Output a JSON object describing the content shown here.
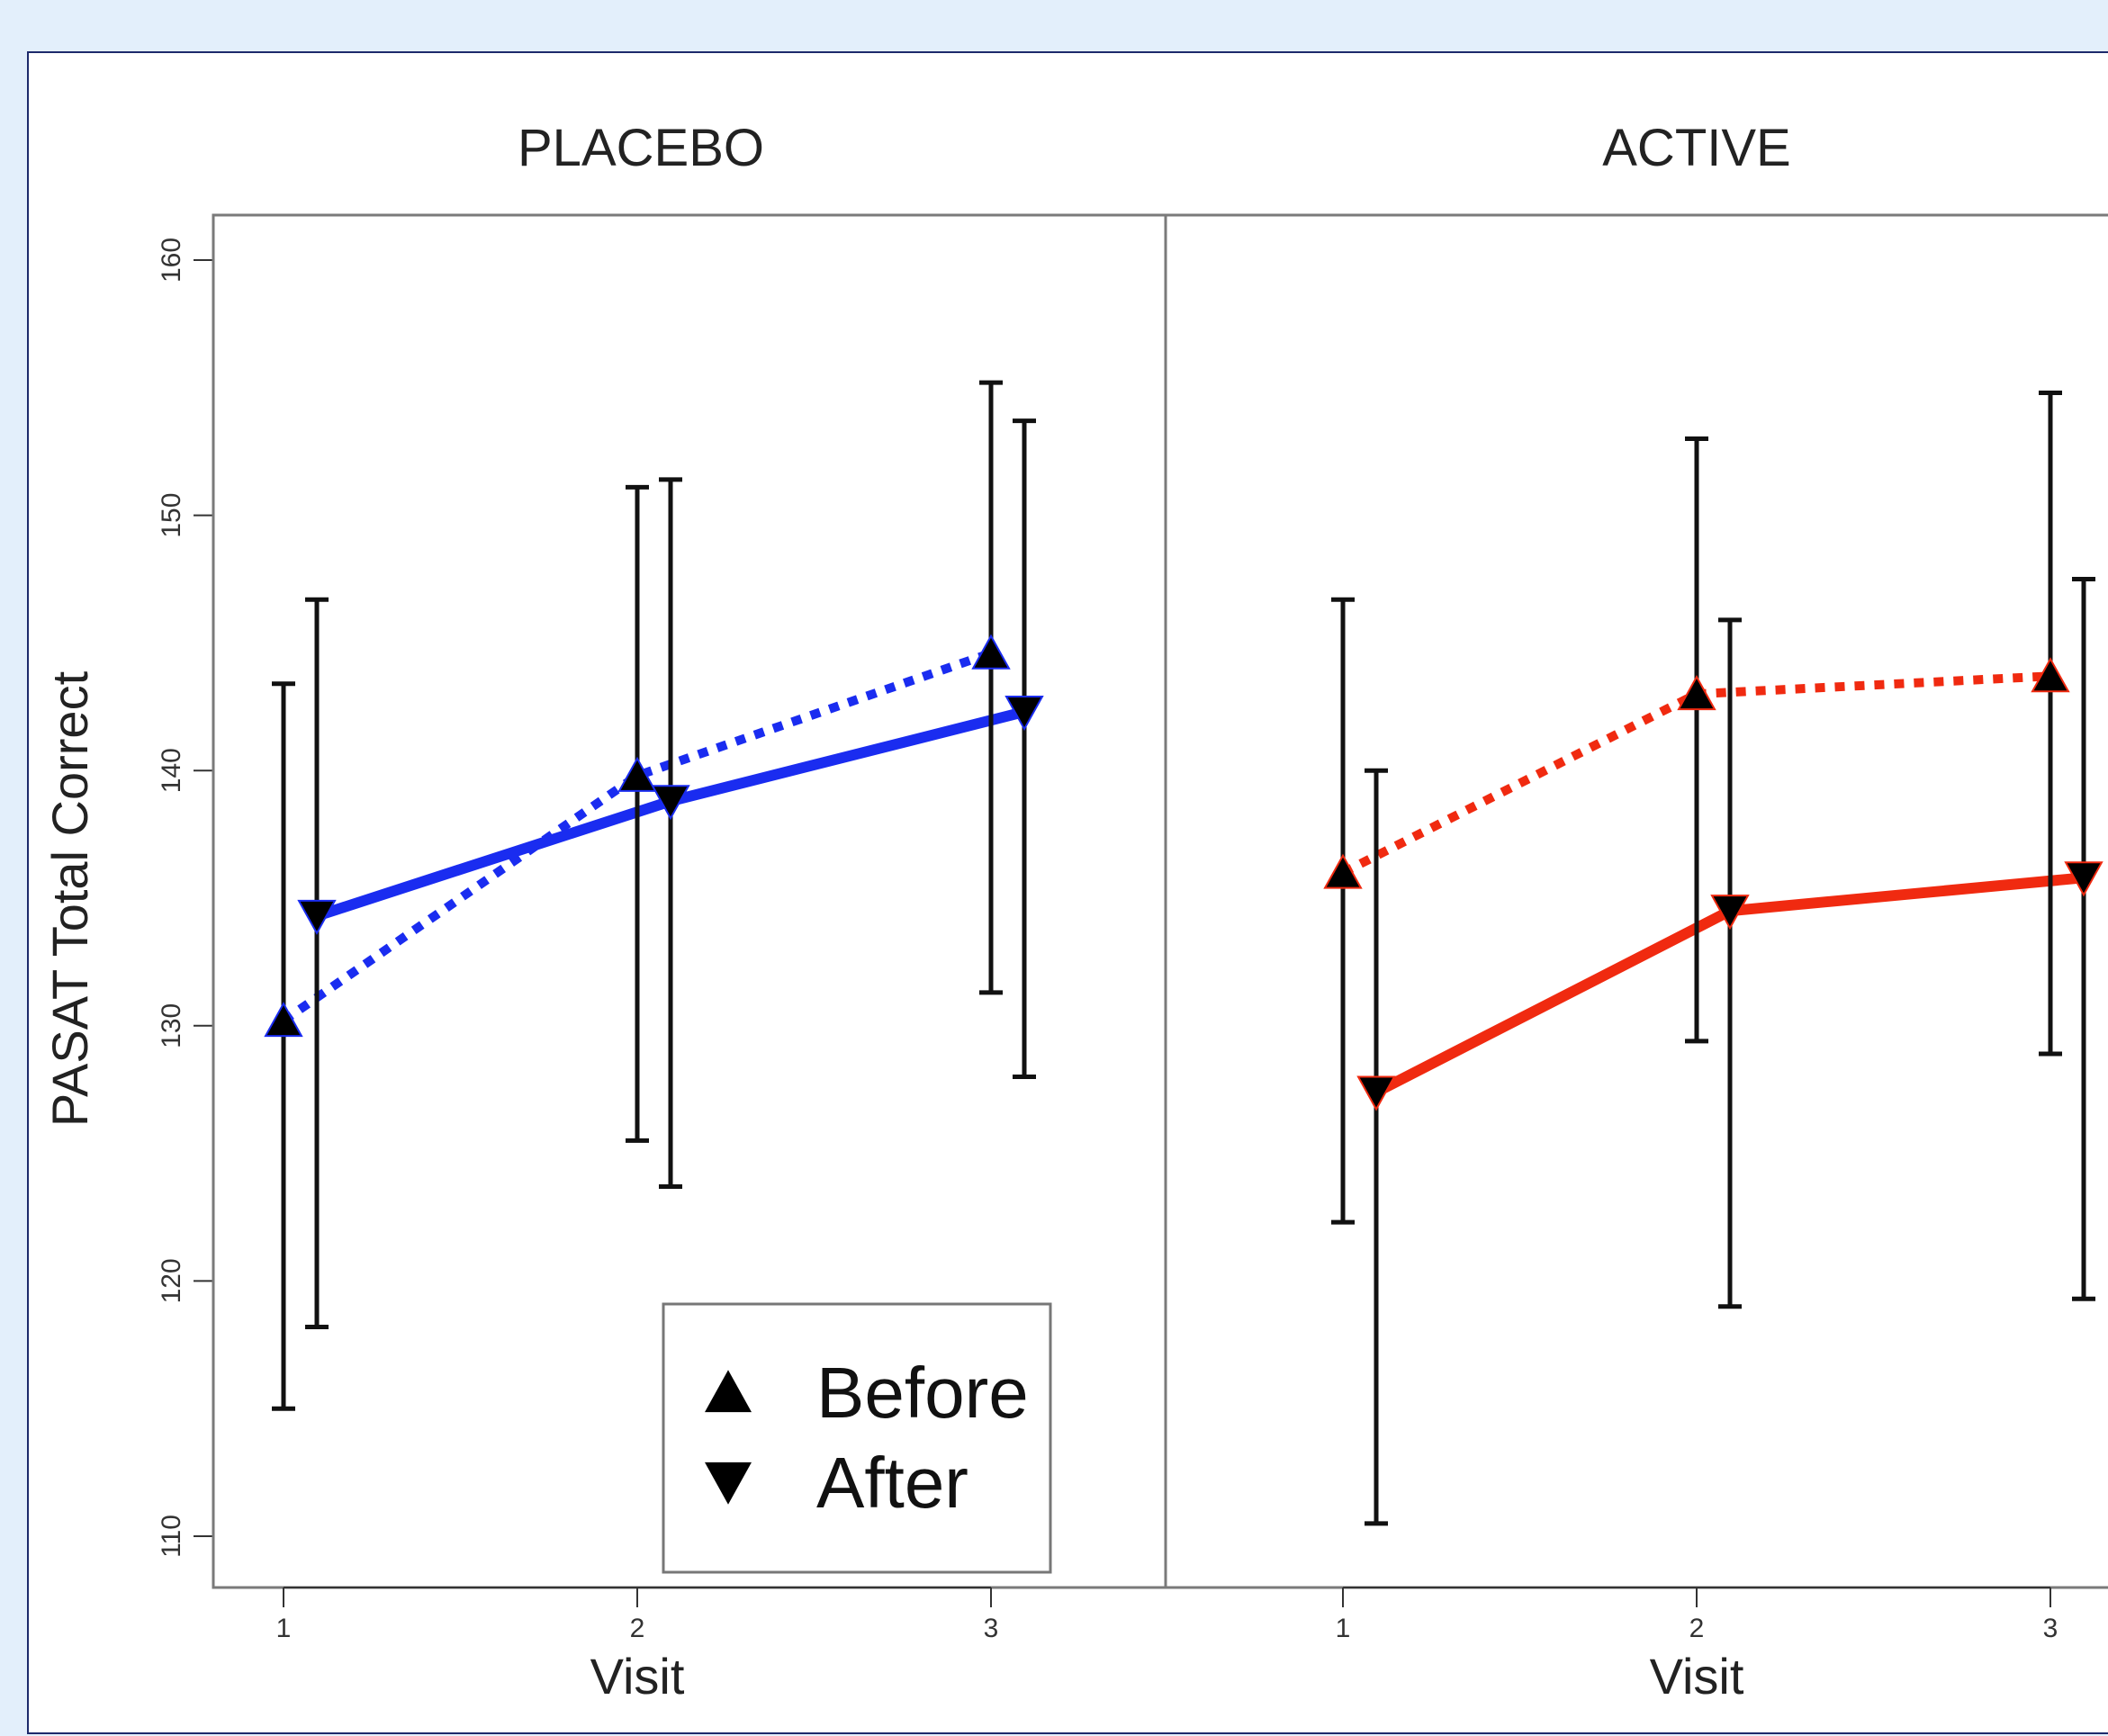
{
  "chart_data": {
    "type": "line",
    "ylabel": "PASAT Total Correct",
    "xlabel": "Visit",
    "ylim": [
      108,
      162
    ],
    "yticks": [
      110,
      120,
      130,
      140,
      150,
      160
    ],
    "xticks": [
      1,
      2,
      3
    ],
    "legend": {
      "placement": "bottom-right of left panel",
      "entries": [
        {
          "label": "Before",
          "marker": "triangle-up",
          "line": "dashed"
        },
        {
          "label": "After",
          "marker": "triangle-down",
          "line": "solid"
        }
      ]
    },
    "panels": [
      {
        "title": "PLACEBO",
        "color": "#1a2cf0",
        "series": [
          {
            "key": "before",
            "x": [
              1,
              2,
              3
            ],
            "y": [
              130.2,
              139.8,
              144.6
            ],
            "lower": [
              115.0,
              125.5,
              131.3
            ],
            "upper": [
              143.4,
              151.1,
              155.2
            ]
          },
          {
            "key": "after",
            "x": [
              1,
              2,
              3
            ],
            "y": [
              134.3,
              138.8,
              142.3
            ],
            "lower": [
              118.2,
              123.7,
              128.0
            ],
            "upper": [
              146.7,
              151.4,
              153.7
            ]
          }
        ]
      },
      {
        "title": "ACTIVE",
        "color": "#f02a10",
        "series": [
          {
            "key": "before",
            "x": [
              1,
              2,
              3
            ],
            "y": [
              136.0,
              143.0,
              143.7
            ],
            "lower": [
              122.3,
              129.4,
              128.9
            ],
            "upper": [
              146.7,
              153.0,
              154.8
            ]
          },
          {
            "key": "after",
            "x": [
              1,
              2,
              3
            ],
            "y": [
              127.4,
              134.5,
              135.8
            ],
            "lower": [
              110.5,
              119.0,
              119.3
            ],
            "upper": [
              140.0,
              145.9,
              147.5
            ]
          }
        ]
      }
    ]
  }
}
